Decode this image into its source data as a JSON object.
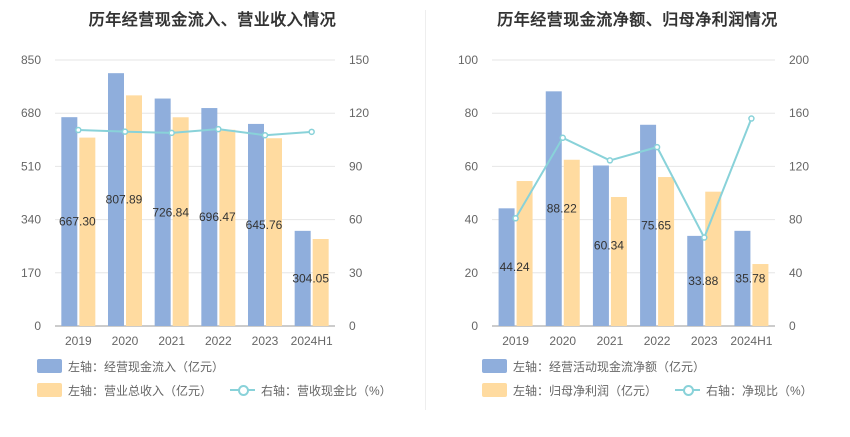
{
  "colors": {
    "bar1": "#8faedc",
    "bar2": "#ffdba0",
    "line": "#89d2d9",
    "grid": "#e6e6e6",
    "axis": "#999999"
  },
  "chart_data": [
    {
      "type": "bar",
      "title": "历年经营现金流入、营业收入情况",
      "categories": [
        "2019",
        "2020",
        "2021",
        "2022",
        "2023",
        "2024H1"
      ],
      "y_left": {
        "ticks": [
          0,
          170,
          340,
          510,
          680,
          850
        ],
        "ylim": [
          0,
          850
        ]
      },
      "y_right": {
        "ticks": [
          0,
          30,
          60,
          90,
          120,
          150
        ],
        "ylim": [
          0,
          150
        ]
      },
      "series": [
        {
          "name": "左轴：经营现金流入（亿元）",
          "axis": "left",
          "kind": "bar",
          "values": [
            667.3,
            807.89,
            726.84,
            696.47,
            645.76,
            304.05
          ],
          "labels": [
            "667.30",
            "807.89",
            "726.84",
            "696.47",
            "645.76",
            "304.05"
          ]
        },
        {
          "name": "左轴：营业总收入（亿元）",
          "axis": "left",
          "kind": "bar",
          "values": [
            602,
            737,
            667,
            627,
            600,
            278
          ]
        },
        {
          "name": "右轴：营收现金比（%）",
          "axis": "right",
          "kind": "line",
          "values": [
            110.5,
            109.6,
            108.9,
            111.0,
            107.6,
            109.5
          ]
        }
      ],
      "legend_position": "bottom-left",
      "grid": true
    },
    {
      "type": "bar",
      "title": "历年经营现金流净额、归母净利润情况",
      "categories": [
        "2019",
        "2020",
        "2021",
        "2022",
        "2023",
        "2024H1"
      ],
      "y_left": {
        "ticks": [
          0,
          20,
          40,
          60,
          80,
          100
        ],
        "ylim": [
          0,
          100
        ]
      },
      "y_right": {
        "ticks": [
          0,
          40,
          80,
          120,
          160,
          200
        ],
        "ylim": [
          0,
          200
        ]
      },
      "series": [
        {
          "name": "左轴：经营活动现金流净额（亿元）",
          "axis": "left",
          "kind": "bar",
          "values": [
            44.24,
            88.22,
            60.34,
            75.65,
            33.88,
            35.78
          ],
          "labels": [
            "44.24",
            "88.22",
            "60.34",
            "75.65",
            "33.88",
            "35.78"
          ]
        },
        {
          "name": "左轴：归母净利润（亿元）",
          "axis": "left",
          "kind": "bar",
          "values": [
            54.5,
            62.5,
            48.5,
            56.0,
            50.5,
            23.3
          ]
        },
        {
          "name": "右轴：净现比（%）",
          "axis": "right",
          "kind": "line",
          "values": [
            81.0,
            141.5,
            124.5,
            134.5,
            66.5,
            156.0
          ]
        }
      ],
      "legend_position": "bottom-left",
      "grid": true
    }
  ]
}
